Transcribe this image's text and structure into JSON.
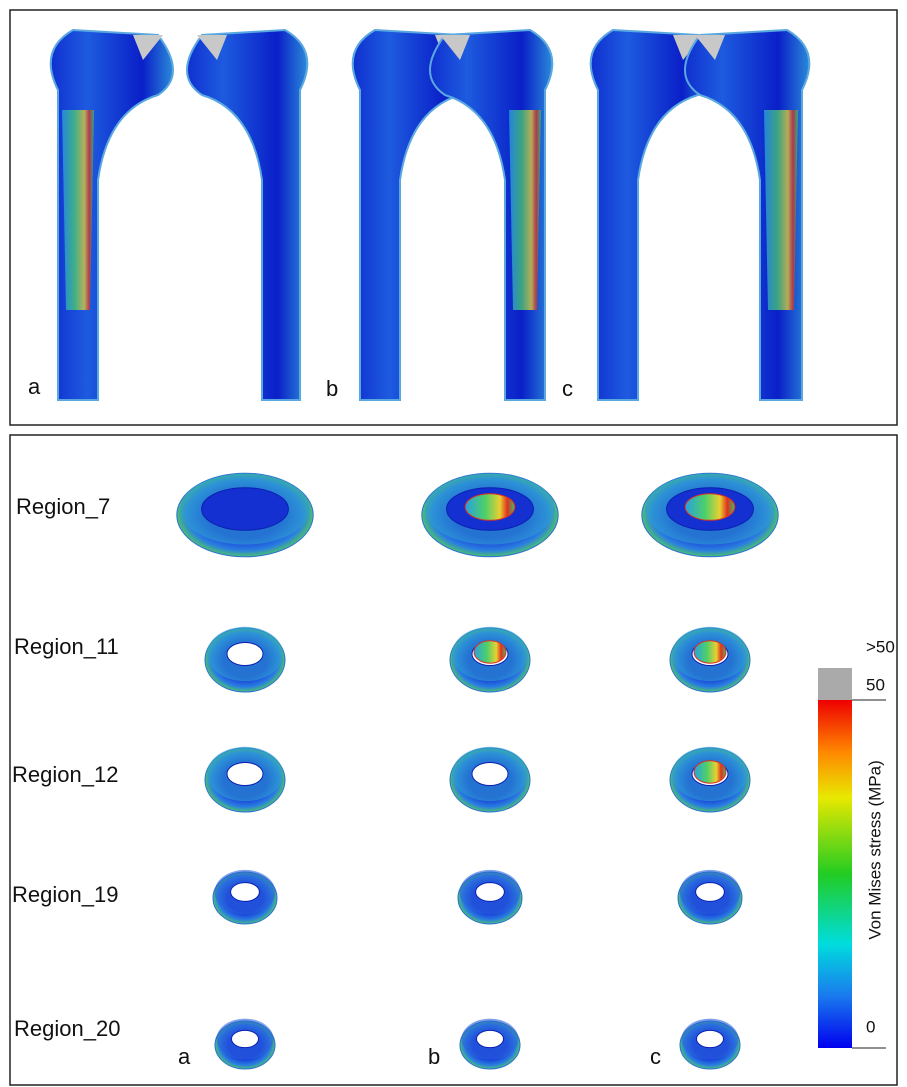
{
  "top_panel": {
    "labels": [
      "a",
      "b",
      "c"
    ]
  },
  "bottom_panel": {
    "regions": [
      "Region_7",
      "Region_11",
      "Region_12",
      "Region_19",
      "Region_20"
    ],
    "labels": [
      "a",
      "b",
      "c"
    ]
  },
  "colorbar": {
    "title": "Von Mises stress (MPa)",
    "ticks": [
      ">50",
      "50",
      "0"
    ]
  }
}
